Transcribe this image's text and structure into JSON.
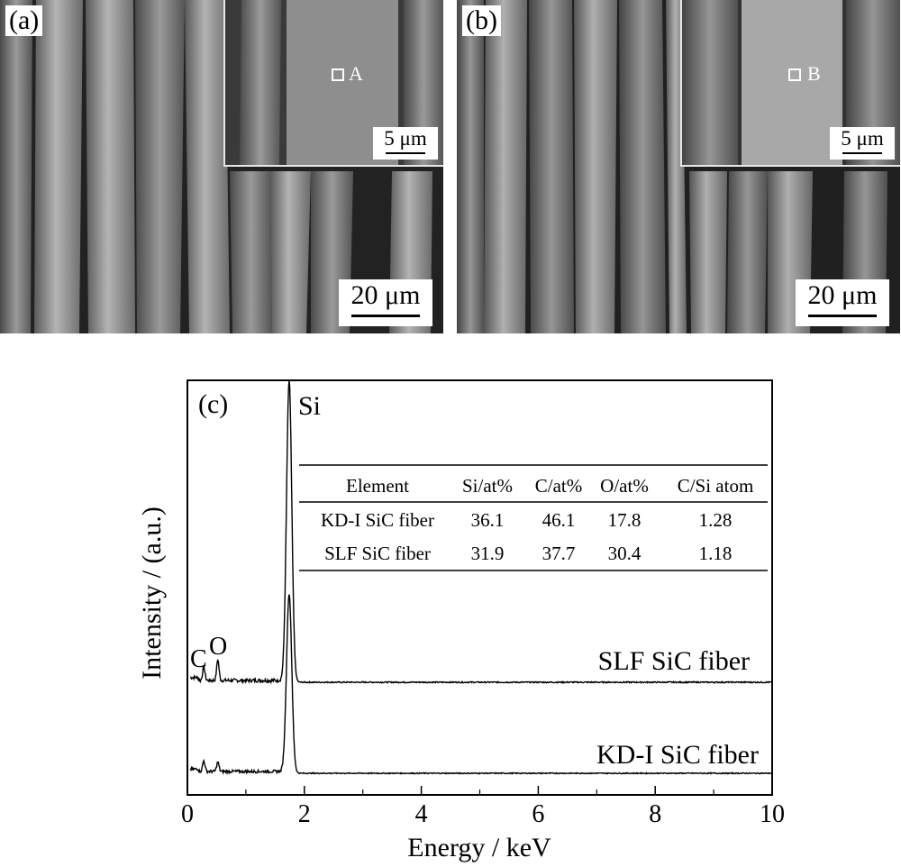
{
  "panels": {
    "a": {
      "label": "(a)",
      "scale_main": "20 μm",
      "scale_inset": "5 μm",
      "spot": "A"
    },
    "b": {
      "label": "(b)",
      "scale_main": "20 μm",
      "scale_inset": "5 μm",
      "spot": "B"
    }
  },
  "chart_data": {
    "type": "line",
    "panel_label": "(c)",
    "xlabel": "Energy / keV",
    "ylabel": "Intensity / (a.u.)",
    "xlim": [
      0,
      10
    ],
    "xticks": [
      0,
      2,
      4,
      6,
      8,
      10
    ],
    "peak_labels": [
      "Si",
      "C",
      "O"
    ],
    "series": [
      {
        "name": "SLF SiC fiber",
        "peaks": [
          {
            "energy": 0.28,
            "height": 0.045
          },
          {
            "energy": 0.52,
            "height": 0.07
          },
          {
            "energy": 1.74,
            "height": 1.0
          }
        ]
      },
      {
        "name": "KD-I SiC fiber",
        "peaks": [
          {
            "energy": 0.28,
            "height": 0.045
          },
          {
            "energy": 0.52,
            "height": 0.04
          },
          {
            "energy": 1.74,
            "height": 0.75
          }
        ]
      }
    ],
    "table": {
      "headers": [
        "Element",
        "Si/at%",
        "C/at%",
        "O/at%",
        "C/Si atom"
      ],
      "rows": [
        [
          "KD-I SiC fiber",
          "36.1",
          "46.1",
          "17.8",
          "1.28"
        ],
        [
          "SLF SiC fiber",
          "31.9",
          "37.7",
          "30.4",
          "1.18"
        ]
      ]
    }
  }
}
